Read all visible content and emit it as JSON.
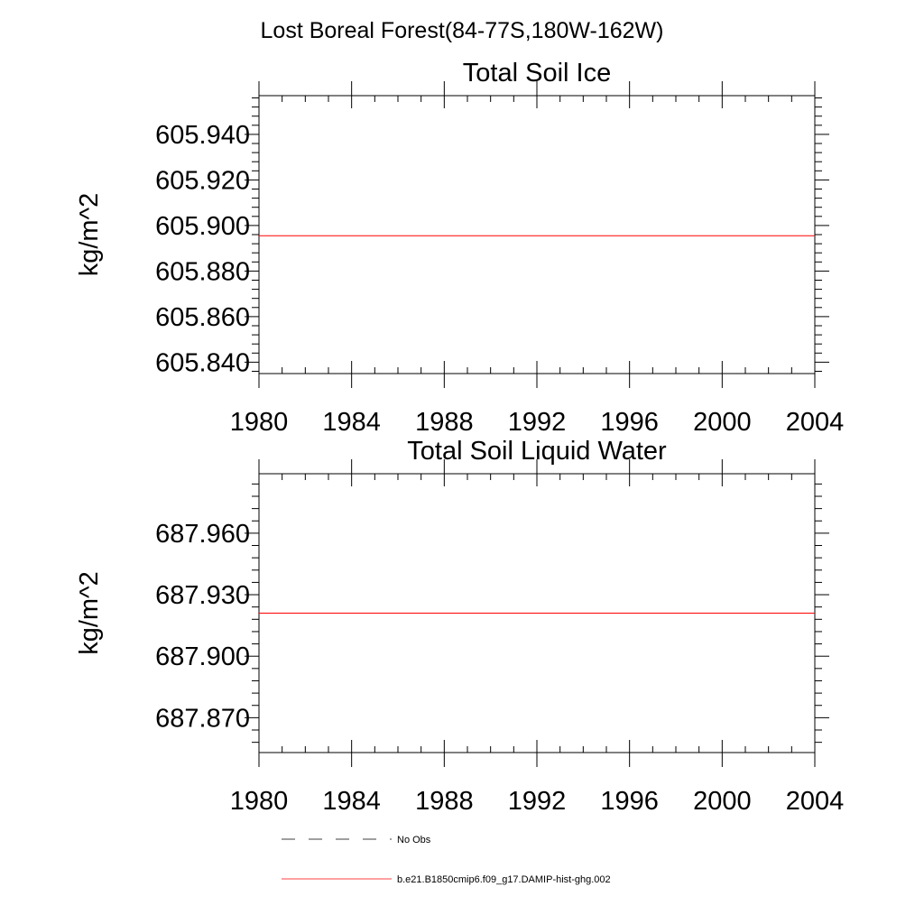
{
  "figure_title": "Lost Boreal Forest(84-77S,180W-162W)",
  "colors": {
    "model_line": "#ff0000",
    "obs_line": "#000000",
    "axis": "#000000"
  },
  "chart_data": [
    {
      "type": "line",
      "title": "Total Soil Ice",
      "xlabel": "",
      "ylabel": "kg/m^2",
      "xlim": [
        1980,
        2004
      ],
      "ylim": [
        605.835,
        605.957
      ],
      "x_ticks": [
        1980,
        1984,
        1988,
        1992,
        1996,
        2000,
        2004
      ],
      "y_ticks": [
        605.84,
        605.86,
        605.88,
        605.9,
        605.92,
        605.94
      ],
      "y_tick_labels": [
        "605.840",
        "605.860",
        "605.880",
        "605.900",
        "605.920",
        "605.940"
      ],
      "y_minor_step": 0.004,
      "x_minor_step": 1,
      "grid": false,
      "series": [
        {
          "name": "b.e21.B1850cmip6.f09_g17.DAMIP-hist-ghg.002",
          "x": [
            1980,
            2004
          ],
          "values": [
            605.8955,
            605.8955
          ]
        }
      ]
    },
    {
      "type": "line",
      "title": "Total Soil Liquid Water",
      "xlabel": "",
      "ylabel": "kg/m^2",
      "xlim": [
        1980,
        2004
      ],
      "ylim": [
        687.853,
        687.989
      ],
      "x_ticks": [
        1980,
        1984,
        1988,
        1992,
        1996,
        2000,
        2004
      ],
      "y_ticks": [
        687.87,
        687.9,
        687.93,
        687.96
      ],
      "y_tick_labels": [
        "687.870",
        "687.900",
        "687.930",
        "687.960"
      ],
      "y_minor_step": 0.006,
      "x_minor_step": 1,
      "grid": false,
      "series": [
        {
          "name": "b.e21.B1850cmip6.f09_g17.DAMIP-hist-ghg.002",
          "x": [
            1980,
            2004
          ],
          "values": [
            687.921,
            687.921
          ]
        }
      ]
    }
  ],
  "legend": {
    "placement": "bottom-left",
    "entries": [
      {
        "label": "No Obs",
        "style": "dashed",
        "color": "#000000"
      },
      {
        "label": "b.e21.B1850cmip6.f09_g17.DAMIP-hist-ghg.002",
        "style": "solid",
        "color": "#ff0000"
      }
    ]
  }
}
